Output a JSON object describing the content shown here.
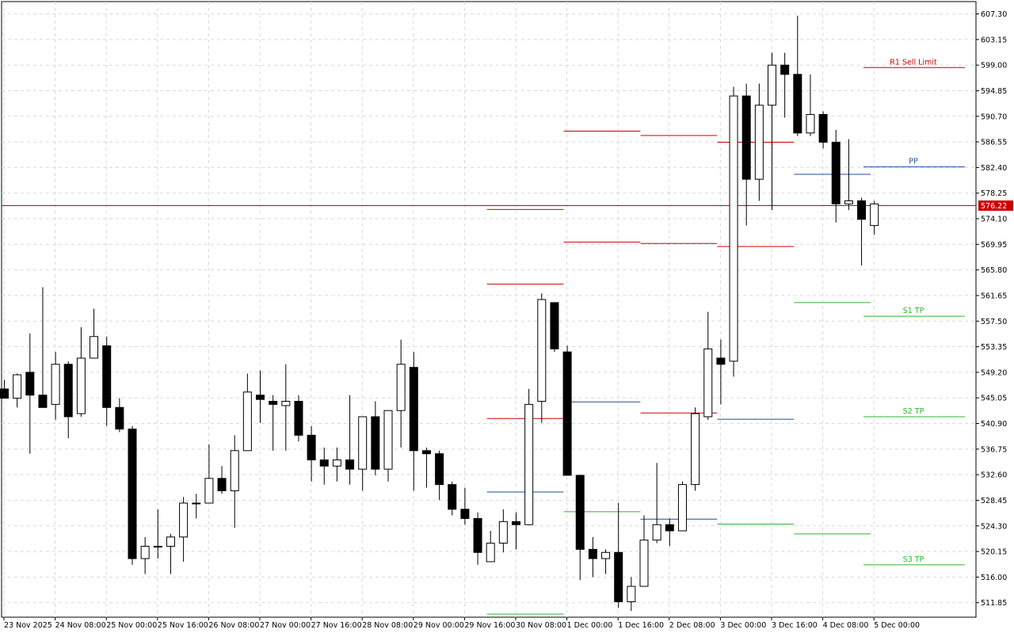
{
  "chart_data": {
    "type": "candlestick",
    "ylim": [
      509.5,
      609.3
    ],
    "y_ticks": [
      "607.30",
      "603.15",
      "599.00",
      "594.85",
      "590.70",
      "586.55",
      "582.40",
      "578.25",
      "574.10",
      "569.95",
      "565.80",
      "561.65",
      "557.50",
      "553.35",
      "549.20",
      "545.05",
      "540.90",
      "536.75",
      "532.60",
      "528.45",
      "524.30",
      "520.15",
      "516.00",
      "511.85"
    ],
    "x_ticks": [
      {
        "label": "23 Nov 2025",
        "i": 0
      },
      {
        "label": "24 Nov 08:00",
        "i": 4
      },
      {
        "label": "25 Nov 00:00",
        "i": 8
      },
      {
        "label": "25 Nov 16:00",
        "i": 12
      },
      {
        "label": "26 Nov 08:00",
        "i": 16
      },
      {
        "label": "27 Nov 00:00",
        "i": 20
      },
      {
        "label": "27 Nov 16:00",
        "i": 24
      },
      {
        "label": "28 Nov 08:00",
        "i": 28
      },
      {
        "label": "29 Nov 00:00",
        "i": 32
      },
      {
        "label": "29 Nov 16:00",
        "i": 36
      },
      {
        "label": "30 Nov 08:00",
        "i": 40
      },
      {
        "label": "1 Dec 00:00",
        "i": 44
      },
      {
        "label": "1 Dec 16:00",
        "i": 48
      },
      {
        "label": "2 Dec 08:00",
        "i": 52
      },
      {
        "label": "3 Dec 00:00",
        "i": 56
      },
      {
        "label": "3 Dec 16:00",
        "i": 60
      },
      {
        "label": "4 Dec 08:00",
        "i": 64
      },
      {
        "label": "5 Dec 00:00",
        "i": 68
      }
    ],
    "candles": [
      {
        "o": 546.5,
        "h": 548.0,
        "l": 545.0,
        "c": 545.0
      },
      {
        "o": 545.0,
        "h": 549.0,
        "l": 543.5,
        "c": 548.8
      },
      {
        "o": 549.2,
        "h": 555.5,
        "l": 536.0,
        "c": 545.5
      },
      {
        "o": 545.5,
        "h": 563.0,
        "l": 543.5,
        "c": 543.5
      },
      {
        "o": 544.0,
        "h": 552.5,
        "l": 541.5,
        "c": 550.5
      },
      {
        "o": 550.5,
        "h": 551.0,
        "l": 538.5,
        "c": 542.0
      },
      {
        "o": 542.5,
        "h": 556.5,
        "l": 542.0,
        "c": 551.5
      },
      {
        "o": 551.5,
        "h": 559.5,
        "l": 551.5,
        "c": 555.0
      },
      {
        "o": 553.5,
        "h": 555.0,
        "l": 540.5,
        "c": 543.5
      },
      {
        "o": 543.5,
        "h": 545.0,
        "l": 539.5,
        "c": 540.0
      },
      {
        "o": 540.0,
        "h": 540.5,
        "l": 518.0,
        "c": 519.0
      },
      {
        "o": 519.0,
        "h": 522.5,
        "l": 516.5,
        "c": 521.0
      },
      {
        "o": 521.0,
        "h": 527.0,
        "l": 519.0,
        "c": 521.0
      },
      {
        "o": 521.0,
        "h": 523.0,
        "l": 516.5,
        "c": 522.5
      },
      {
        "o": 522.5,
        "h": 529.0,
        "l": 518.5,
        "c": 528.0
      },
      {
        "o": 528.0,
        "h": 529.5,
        "l": 525.5,
        "c": 528.0
      },
      {
        "o": 528.0,
        "h": 537.5,
        "l": 528.0,
        "c": 532.0
      },
      {
        "o": 532.0,
        "h": 534.0,
        "l": 529.5,
        "c": 530.0
      },
      {
        "o": 530.0,
        "h": 539.0,
        "l": 524.0,
        "c": 536.5
      },
      {
        "o": 536.5,
        "h": 549.0,
        "l": 536.5,
        "c": 546.0
      },
      {
        "o": 545.5,
        "h": 549.5,
        "l": 541.0,
        "c": 544.8
      },
      {
        "o": 544.5,
        "h": 545.5,
        "l": 536.5,
        "c": 544.0
      },
      {
        "o": 543.8,
        "h": 550.5,
        "l": 536.5,
        "c": 544.5
      },
      {
        "o": 544.5,
        "h": 545.5,
        "l": 538.0,
        "c": 539.0
      },
      {
        "o": 539.0,
        "h": 540.5,
        "l": 531.5,
        "c": 535.0
      },
      {
        "o": 535.0,
        "h": 537.0,
        "l": 531.0,
        "c": 534.0
      },
      {
        "o": 534.0,
        "h": 537.0,
        "l": 531.5,
        "c": 535.0
      },
      {
        "o": 535.0,
        "h": 545.5,
        "l": 531.0,
        "c": 533.5
      },
      {
        "o": 533.5,
        "h": 541.5,
        "l": 530.0,
        "c": 542.0
      },
      {
        "o": 542.0,
        "h": 544.5,
        "l": 532.5,
        "c": 533.5
      },
      {
        "o": 533.5,
        "h": 543.0,
        "l": 531.5,
        "c": 543.0
      },
      {
        "o": 543.0,
        "h": 554.5,
        "l": 537.0,
        "c": 550.5
      },
      {
        "o": 550.0,
        "h": 552.5,
        "l": 530.0,
        "c": 536.5
      },
      {
        "o": 536.5,
        "h": 537.0,
        "l": 530.5,
        "c": 536.0
      },
      {
        "o": 536.0,
        "h": 536.5,
        "l": 528.5,
        "c": 531.0
      },
      {
        "o": 531.0,
        "h": 531.5,
        "l": 526.0,
        "c": 527.0
      },
      {
        "o": 527.0,
        "h": 530.5,
        "l": 524.5,
        "c": 525.5
      },
      {
        "o": 525.5,
        "h": 526.5,
        "l": 518.0,
        "c": 520.0
      },
      {
        "o": 518.5,
        "h": 523.5,
        "l": 518.5,
        "c": 521.5
      },
      {
        "o": 521.5,
        "h": 527.0,
        "l": 520.0,
        "c": 525.0
      },
      {
        "o": 525.0,
        "h": 526.5,
        "l": 520.5,
        "c": 524.5
      },
      {
        "o": 524.5,
        "h": 546.5,
        "l": 524.5,
        "c": 544.0
      },
      {
        "o": 544.5,
        "h": 562.0,
        "l": 541.0,
        "c": 561.0
      },
      {
        "o": 560.5,
        "h": 560.5,
        "l": 552.5,
        "c": 553.0
      },
      {
        "o": 552.5,
        "h": 553.5,
        "l": 532.5,
        "c": 532.5
      },
      {
        "o": 532.5,
        "h": 532.5,
        "l": 515.5,
        "c": 520.5
      },
      {
        "o": 520.5,
        "h": 522.5,
        "l": 516.0,
        "c": 519.0
      },
      {
        "o": 519.0,
        "h": 520.5,
        "l": 516.5,
        "c": 520.0
      },
      {
        "o": 520.0,
        "h": 528.0,
        "l": 511.0,
        "c": 512.0
      },
      {
        "o": 512.0,
        "h": 516.0,
        "l": 510.5,
        "c": 514.5
      },
      {
        "o": 514.5,
        "h": 526.0,
        "l": 514.5,
        "c": 522.0
      },
      {
        "o": 522.0,
        "h": 534.5,
        "l": 521.5,
        "c": 524.5
      },
      {
        "o": 524.5,
        "h": 525.5,
        "l": 521.0,
        "c": 523.5
      },
      {
        "o": 523.5,
        "h": 531.5,
        "l": 523.5,
        "c": 531.0
      },
      {
        "o": 531.0,
        "h": 543.5,
        "l": 530.0,
        "c": 542.5
      },
      {
        "o": 542.0,
        "h": 559.0,
        "l": 541.5,
        "c": 553.0
      },
      {
        "o": 551.5,
        "h": 554.5,
        "l": 544.0,
        "c": 550.5
      },
      {
        "o": 551.0,
        "h": 595.5,
        "l": 548.5,
        "c": 594.0
      },
      {
        "o": 594.0,
        "h": 596.0,
        "l": 573.0,
        "c": 580.5
      },
      {
        "o": 580.5,
        "h": 596.0,
        "l": 577.0,
        "c": 592.5
      },
      {
        "o": 592.5,
        "h": 601.0,
        "l": 575.5,
        "c": 599.0
      },
      {
        "o": 599.0,
        "h": 601.0,
        "l": 590.5,
        "c": 597.5
      },
      {
        "o": 597.5,
        "h": 607.0,
        "l": 587.5,
        "c": 588.0
      },
      {
        "o": 588.0,
        "h": 597.5,
        "l": 587.5,
        "c": 591.0
      },
      {
        "o": 591.0,
        "h": 591.5,
        "l": 585.5,
        "c": 586.5
      },
      {
        "o": 586.5,
        "h": 588.5,
        "l": 573.5,
        "c": 576.5
      },
      {
        "o": 576.5,
        "h": 587.0,
        "l": 575.5,
        "c": 577.0
      },
      {
        "o": 577.0,
        "h": 577.5,
        "l": 566.5,
        "c": 574.0
      },
      {
        "o": 573.0,
        "h": 577.0,
        "l": 571.5,
        "c": 576.5
      }
    ],
    "level_segments": [
      {
        "y": 575.6,
        "i0": 38,
        "i1": 43,
        "color": "#cc0000"
      },
      {
        "y": 563.5,
        "i0": 38,
        "i1": 43,
        "color": "#cc0000"
      },
      {
        "y": 541.7,
        "i0": 38,
        "i1": 43,
        "color": "#cc0000"
      },
      {
        "y": 529.8,
        "i0": 38,
        "i1": 43,
        "color": "#1f4e9c"
      },
      {
        "y": 510.0,
        "i0": 38,
        "i1": 43,
        "color": "#2db52d"
      },
      {
        "y": 588.3,
        "i0": 44,
        "i1": 49,
        "color": "#cc0000"
      },
      {
        "y": 570.3,
        "i0": 44,
        "i1": 49,
        "color": "#cc0000"
      },
      {
        "y": 544.4,
        "i0": 44,
        "i1": 49,
        "color": "#1f4e9c"
      },
      {
        "y": 526.6,
        "i0": 44,
        "i1": 49,
        "color": "#2db52d"
      },
      {
        "y": 587.6,
        "i0": 50,
        "i1": 55,
        "color": "#cc0000"
      },
      {
        "y": 570.1,
        "i0": 50,
        "i1": 55,
        "color": "#cc0000"
      },
      {
        "y": 542.6,
        "i0": 50,
        "i1": 55,
        "color": "#cc0000"
      },
      {
        "y": 525.4,
        "i0": 50,
        "i1": 55,
        "color": "#1f4e9c"
      },
      {
        "y": 586.5,
        "i0": 56,
        "i1": 61,
        "color": "#cc0000"
      },
      {
        "y": 569.6,
        "i0": 56,
        "i1": 61,
        "color": "#cc0000"
      },
      {
        "y": 541.6,
        "i0": 56,
        "i1": 61,
        "color": "#1f4e9c"
      },
      {
        "y": 524.6,
        "i0": 56,
        "i1": 61,
        "color": "#2db52d"
      },
      {
        "y": 581.3,
        "i0": 62,
        "i1": 67,
        "color": "#1f4e9c"
      },
      {
        "y": 560.5,
        "i0": 62,
        "i1": 67,
        "color": "#2db52d"
      },
      {
        "y": 523.0,
        "i0": 62,
        "i1": 67,
        "color": "#2db52d"
      }
    ],
    "named_levels": [
      {
        "label": "R1 Sell Limit",
        "y": 598.6,
        "color": "#cc0000"
      },
      {
        "label": "PP",
        "y": 582.5,
        "color": "#1f4e9c"
      },
      {
        "label": "S1 TP",
        "y": 558.3,
        "color": "#2db52d"
      },
      {
        "label": "S2 TP",
        "y": 542.0,
        "color": "#2db52d"
      },
      {
        "label": "S3 TP",
        "y": 518.0,
        "color": "#2db52d"
      }
    ],
    "current_price": {
      "value": 576.22,
      "label": "576.22",
      "color": "#cc0000"
    },
    "grid": true,
    "bull_color": "#ffffff",
    "bear_color": "#000000"
  }
}
